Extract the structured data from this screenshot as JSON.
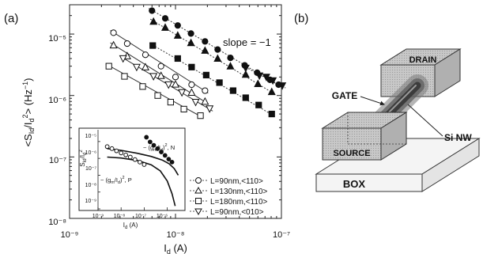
{
  "panel_a_label": "(a)",
  "panel_b_label": "(b)",
  "chart_data": [
    {
      "type": "scatter",
      "title": "",
      "xlabel": "I_d (A)",
      "ylabel": "<S_Id/I_d^2> (Hz^-1)",
      "xlim": [
        1e-09,
        1e-07
      ],
      "ylim": [
        1e-08,
        3e-05
      ],
      "xscale": "log",
      "yscale": "log",
      "x_ticks": [
        "10⁻⁹",
        "10⁻⁸",
        "10⁻⁷"
      ],
      "y_ticks": [
        "10⁻⁵",
        "10⁻⁶",
        "10⁻⁷",
        "10⁻⁸"
      ],
      "annotation": "slope = −1",
      "legend_placement": "bottom-right",
      "series": [
        {
          "name": "L=90nm,<110>",
          "marker": "circle-open",
          "x": [
            2.6e-09,
            3.5e-09,
            5.2e-09,
            7.3e-09,
            1e-08,
            1.42e-08,
            1.9e-08
          ],
          "y": [
            1.05e-05,
            7e-06,
            4.6e-06,
            3e-06,
            2e-06,
            1.5e-06,
            1.2e-06
          ]
        },
        {
          "name": "L=130nm,<110>",
          "marker": "triangle-up-open",
          "x": [
            2.6e-09,
            3.5e-09,
            5.2e-09,
            7.3e-09,
            1e-08,
            1.42e-08,
            1.9e-08
          ],
          "y": [
            6.6e-06,
            4.4e-06,
            2.9e-06,
            2.1e-06,
            1.52e-06,
            1.12e-06,
            8e-07
          ]
        },
        {
          "name": "L=180nm,<110>",
          "marker": "square-open",
          "x": [
            2.35e-09,
            3.3e-09,
            4.9e-09,
            6.8e-09,
            9e-09,
            1.2e-08,
            1.72e-08
          ],
          "y": [
            3e-06,
            2.05e-06,
            1.4e-06,
            1e-06,
            7.8e-07,
            6e-07,
            4.7e-07
          ]
        },
        {
          "name": "L=90nm,<010>",
          "marker": "triangle-down-open",
          "x": [
            3.2e-09,
            4.3e-09,
            6.2e-09,
            8.6e-09,
            1.15e-08,
            1.55e-08,
            2.1e-08
          ],
          "y": [
            4e-06,
            2.9e-06,
            2.05e-06,
            1.5e-06,
            1.12e-06,
            7.8e-07,
            6.1e-07
          ]
        },
        {
          "name": "",
          "marker": "circle-filled",
          "x": [
            6e-09,
            8e-09,
            1.05e-08,
            1.4e-08,
            1.9e-08,
            2.5e-08,
            3.3e-08,
            4.5e-08,
            5.9e-08,
            7.8e-08,
            9.4e-08
          ],
          "y": [
            2.4e-05,
            1.8e-05,
            1.38e-05,
            1.02e-05,
            7.6e-06,
            5.6e-06,
            4.1e-06,
            3.1e-06,
            2.35e-06,
            1.8e-06,
            1.5e-06
          ]
        },
        {
          "name": "",
          "marker": "triangle-up-filled",
          "x": [
            6.2e-09,
            8e-09,
            1.05e-08,
            1.4e-08,
            1.9e-08,
            2.5e-08,
            3.3e-08,
            4.6e-08,
            6e-08,
            8.1e-08
          ],
          "y": [
            1.6e-05,
            1.28e-05,
            9.5e-06,
            7.2e-06,
            5.4e-06,
            4e-06,
            3e-06,
            2.2e-06,
            1.55e-06,
            1.15e-06
          ]
        },
        {
          "name": "",
          "marker": "square-filled",
          "x": [
            6.1e-09,
            1.05e-08,
            1.42e-08,
            1.95e-08,
            2.6e-08,
            3.5e-08,
            4.6e-08,
            6.1e-08,
            8.1e-08
          ],
          "y": [
            6.5e-06,
            4e-06,
            2.9e-06,
            2.15e-06,
            1.62e-06,
            1.2e-06,
            9.2e-07,
            7e-07,
            5e-07
          ]
        },
        {
          "name": "",
          "marker": "triangle-down-filled",
          "x": [
            4.6e-08,
            6.2e-08,
            7.2e-08,
            8.3e-08,
            1.02e-07
          ],
          "y": [
            2.8e-06,
            2.1e-06,
            2e-06,
            1.75e-06,
            1.45e-06
          ]
        }
      ]
    },
    {
      "type": "line",
      "title": "",
      "xlabel": "I_d (A)",
      "ylabel": "S_Id/I_d^2",
      "xlim": [
        1e-09,
        5e-06
      ],
      "ylim": [
        1e-09,
        5e-05
      ],
      "xscale": "log",
      "yscale": "log",
      "x_ticks": [
        "10⁻⁹",
        "10⁻⁸",
        "10⁻⁷",
        "10⁻⁶"
      ],
      "y_ticks": [
        "10⁻⁵",
        "10⁻⁶",
        "10⁻⁷",
        "10⁻⁸",
        "10⁻⁹"
      ],
      "curve_labels": [
        "~ (g_m/I_d)^2, N",
        "~ (g_m/I_d)^2, P"
      ],
      "series": [
        {
          "name": "",
          "marker": "circle-filled",
          "x": [
            1.25e-07,
            1.8e-07,
            2.6e-07,
            3.8e-07,
            5.5e-07,
            8e-07,
            1.15e-06,
            1.6e-06
          ],
          "y": [
            1.8e-05,
            9.5e-06,
            6e-06,
            3.8e-06,
            2.4e-06,
            1.5e-06,
            9e-07,
            6e-07
          ]
        },
        {
          "name": "",
          "marker": "circle-open",
          "x": [
            2.5e-09,
            4e-09,
            6.3e-09,
            1e-08,
            1.6e-08,
            2.5e-08,
            4e-08,
            6.5e-08,
            1e-07
          ],
          "y": [
            5e-06,
            3.8e-06,
            2.8e-06,
            2.1e-06,
            1.6e-06,
            1.2e-06,
            8.5e-07,
            6e-07,
            4.3e-07
          ]
        },
        {
          "name": "N",
          "x": [
            2.5e-09,
            1e-08,
            5e-08,
            2e-07,
            6e-07,
            1.2e-06,
            2e-06,
            3e-06
          ],
          "y": [
            3.8e-06,
            3e-06,
            2e-06,
            1.3e-06,
            8e-07,
            4.8e-07,
            2.5e-07,
            1e-07
          ]
        },
        {
          "name": "P",
          "x": [
            2.5e-09,
            1e-08,
            5e-08,
            2e-07,
            5e-07,
            1e-06,
            1.6e-06,
            2.2e-06
          ],
          "y": [
            1.2e-06,
            1.05e-06,
            7.5e-07,
            4.2e-07,
            1.8e-07,
            4.5e-08,
            8e-09,
            1.5e-09
          ]
        }
      ]
    }
  ],
  "diagram_b": {
    "labels": {
      "drain": "DRAIN",
      "gate": "GATE",
      "source": "SOURCE",
      "nanowire": "Si NW",
      "box": "BOX"
    }
  }
}
